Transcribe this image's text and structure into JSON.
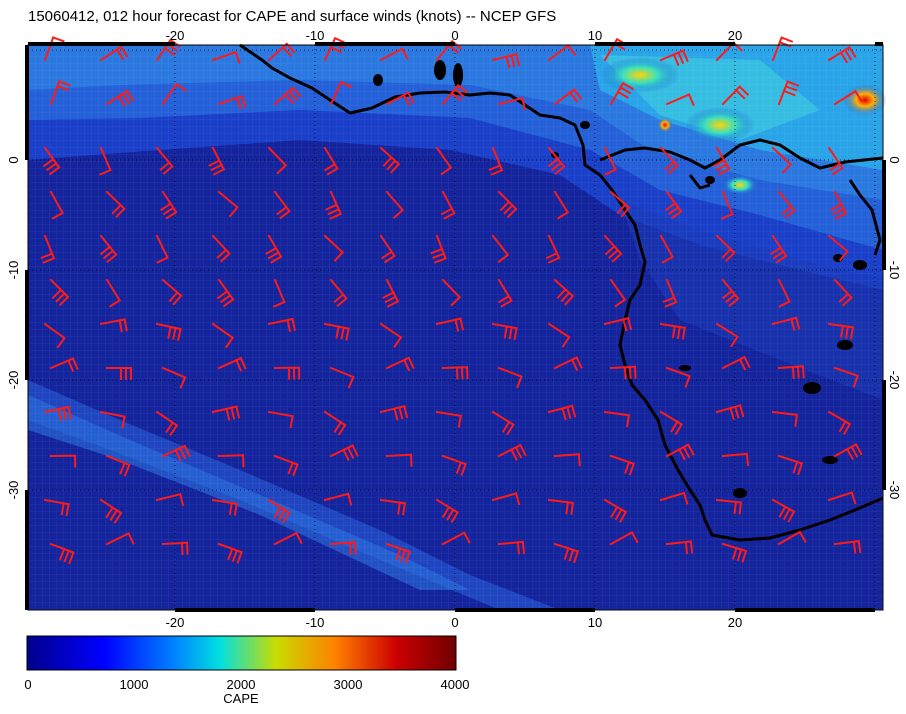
{
  "title": "15060412, 012 hour forecast for CAPE and surface winds (knots) -- NCEP GFS",
  "map": {
    "lon_range": [
      -31,
      31
    ],
    "lat_range": [
      -40,
      10
    ],
    "lon_ticks": [
      "-20",
      "-10",
      "0",
      "10",
      "20"
    ],
    "lat_ticks": [
      "0",
      "-10",
      "-20",
      "-30"
    ],
    "barb_color": "#ff1a1a",
    "coast_color": "#000000",
    "ocean_color": "#14249c"
  },
  "colorbar": {
    "label": "CAPE",
    "tick_labels": [
      "0",
      "1000",
      "2000",
      "3000",
      "4000"
    ],
    "range": [
      0,
      4000
    ],
    "colors": [
      "#00008c",
      "#0000ff",
      "#0080ff",
      "#00e0e0",
      "#c8dc00",
      "#ff8000",
      "#cc0000",
      "#700000"
    ]
  }
}
